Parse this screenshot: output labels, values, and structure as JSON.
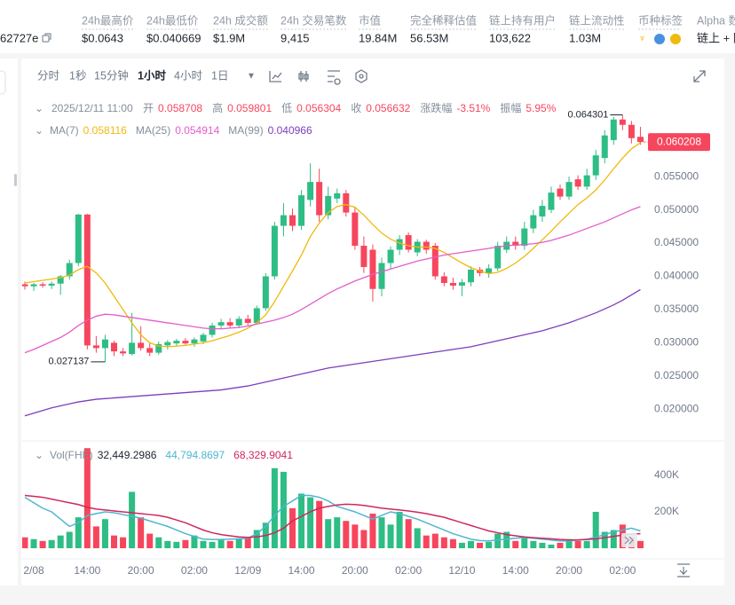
{
  "header": {
    "contract": "62727e",
    "stats": [
      {
        "label": "24h最高价",
        "value": "$0.0643"
      },
      {
        "label": "24h最低价",
        "value": "$0.040669"
      },
      {
        "label": "24h 成交额",
        "value": "$1.9M"
      },
      {
        "label": "24h 交易笔数",
        "value": "9,415"
      },
      {
        "label": "市值",
        "value": "19.84M"
      },
      {
        "label": "完全稀释估值",
        "value": "56.53M"
      },
      {
        "label": "链上持有用户",
        "value": "103,622"
      },
      {
        "label": "链上流动性",
        "value": "1.03M"
      }
    ],
    "tags_label": "币种标签",
    "alpha": {
      "label": "Alpha 数",
      "value": "链上 + 防"
    }
  },
  "toolbar": {
    "intervals": [
      "分时",
      "1秒",
      "15分钟",
      "1小时",
      "4小时",
      "1日"
    ],
    "active": "1小时"
  },
  "info": {
    "time": "2025/12/11 11:00",
    "items": [
      {
        "label": "开",
        "value": 0.058708
      },
      {
        "label": "高",
        "value": 0.059801
      },
      {
        "label": "低",
        "value": 0.056304
      },
      {
        "label": "收",
        "value": 0.056632
      },
      {
        "label": "涨跌幅",
        "value": "-3.51%"
      },
      {
        "label": "振幅",
        "value": "5.95%"
      }
    ]
  },
  "chart_data": {
    "type": "candlestick",
    "up_color": "#2ebd85",
    "down_color": "#f6465d",
    "categories": [
      null,
      "2/08",
      null,
      null,
      null,
      null,
      null,
      "14:00",
      null,
      null,
      null,
      null,
      null,
      "20:00",
      null,
      null,
      null,
      null,
      null,
      "02:00",
      null,
      null,
      null,
      null,
      null,
      "12/09",
      null,
      null,
      null,
      null,
      null,
      "14:00",
      null,
      null,
      null,
      null,
      null,
      "20:00",
      null,
      null,
      null,
      null,
      null,
      "02:00",
      null,
      null,
      null,
      null,
      null,
      "12/10",
      null,
      null,
      null,
      null,
      null,
      "14:00",
      null,
      null,
      null,
      null,
      null,
      "20:00",
      null,
      null,
      null,
      null,
      null,
      "02:00",
      null,
      null
    ],
    "open": [
      0.0388,
      0.0385,
      0.0388,
      0.0386,
      0.0389,
      0.04,
      0.042,
      0.0493,
      0.0296,
      0.0292,
      0.03,
      0.0287,
      0.0283,
      0.03,
      0.0292,
      0.0285,
      0.0296,
      0.0299,
      0.0303,
      0.0299,
      0.0302,
      0.0312,
      0.0326,
      0.0331,
      0.0326,
      0.0336,
      0.033,
      0.0352,
      0.04,
      0.0476,
      0.0492,
      0.0476,
      0.0515,
      0.0542,
      0.0492,
      0.0517,
      0.0525,
      0.0496,
      0.0446,
      0.044,
      0.0381,
      0.042,
      0.044,
      0.0462,
      0.0436,
      0.0452,
      0.0446,
      0.04,
      0.039,
      0.0386,
      0.0391,
      0.041,
      0.0405,
      0.0412,
      0.044,
      0.0452,
      0.0446,
      0.0472,
      0.049,
      0.05,
      0.0532,
      0.052,
      0.0546,
      0.0535,
      0.0552,
      0.0578,
      0.0605,
      0.0636,
      0.0628,
      0.061
    ],
    "high": [
      0.0392,
      0.039,
      0.0391,
      0.0392,
      0.0402,
      0.0425,
      0.0494,
      0.0494,
      0.031,
      0.0312,
      0.0303,
      0.0292,
      0.0345,
      0.0325,
      0.03,
      0.0302,
      0.0304,
      0.0306,
      0.0307,
      0.0308,
      0.0315,
      0.033,
      0.0336,
      0.0337,
      0.034,
      0.0342,
      0.0356,
      0.0405,
      0.0482,
      0.051,
      0.0502,
      0.053,
      0.057,
      0.0562,
      0.0535,
      0.0532,
      0.053,
      0.0505,
      0.046,
      0.0448,
      0.0428,
      0.0445,
      0.0462,
      0.0466,
      0.0456,
      0.0455,
      0.045,
      0.0406,
      0.0398,
      0.0396,
      0.0415,
      0.0414,
      0.0418,
      0.0452,
      0.046,
      0.046,
      0.0482,
      0.05,
      0.0515,
      0.0535,
      0.0538,
      0.055,
      0.0552,
      0.0562,
      0.059,
      0.062,
      0.064,
      0.064301,
      0.0634,
      0.0625
    ],
    "low": [
      0.038,
      0.0378,
      0.0383,
      0.0381,
      0.0372,
      0.0395,
      0.0415,
      0.029,
      0.0285,
      0.027137,
      0.028,
      0.028,
      0.0281,
      0.0288,
      0.028,
      0.0282,
      0.029,
      0.0295,
      0.0297,
      0.0294,
      0.0298,
      0.0308,
      0.032,
      0.0322,
      0.0322,
      0.0326,
      0.0328,
      0.0348,
      0.0395,
      0.046,
      0.0468,
      0.047,
      0.0505,
      0.0482,
      0.0486,
      0.051,
      0.049,
      0.044,
      0.0405,
      0.0362,
      0.037,
      0.041,
      0.0432,
      0.0436,
      0.043,
      0.0434,
      0.0395,
      0.0385,
      0.038,
      0.037,
      0.0385,
      0.04,
      0.0398,
      0.0408,
      0.0435,
      0.044,
      0.044,
      0.0465,
      0.0482,
      0.0495,
      0.0515,
      0.0515,
      0.053,
      0.053,
      0.0545,
      0.057,
      0.0598,
      0.062,
      0.06,
      0.0598
    ],
    "close": [
      0.0385,
      0.0388,
      0.0386,
      0.0389,
      0.04,
      0.042,
      0.0493,
      0.0296,
      0.0292,
      0.0305,
      0.0287,
      0.0284,
      0.03,
      0.0292,
      0.0285,
      0.0298,
      0.0301,
      0.0303,
      0.0299,
      0.0305,
      0.0312,
      0.0326,
      0.0331,
      0.0326,
      0.0336,
      0.033,
      0.0352,
      0.04,
      0.0476,
      0.0492,
      0.0476,
      0.0522,
      0.0542,
      0.0492,
      0.0521,
      0.0525,
      0.0496,
      0.0446,
      0.0414,
      0.0381,
      0.042,
      0.044,
      0.0456,
      0.044,
      0.0452,
      0.044,
      0.04,
      0.039,
      0.0386,
      0.0391,
      0.041,
      0.0405,
      0.0412,
      0.0446,
      0.0452,
      0.0446,
      0.0472,
      0.0492,
      0.0506,
      0.0526,
      0.052,
      0.0542,
      0.0535,
      0.0552,
      0.0582,
      0.0612,
      0.0636,
      0.0628,
      0.0608,
      0.060208
    ],
    "ylim": [
      0.0155,
      0.0669
    ],
    "yticks": [
      {
        "value": 0.02,
        "label": "0.020000"
      },
      {
        "value": 0.025,
        "label": "0.025000"
      },
      {
        "value": 0.03,
        "label": "0.030000"
      },
      {
        "value": 0.035,
        "label": "0.035000"
      },
      {
        "value": 0.04,
        "label": "0.040000"
      },
      {
        "value": 0.045,
        "label": "0.045000"
      },
      {
        "value": 0.05,
        "label": "0.050000"
      },
      {
        "value": 0.055,
        "label": "0.055000"
      }
    ],
    "ma": [
      {
        "name": "MA(7)",
        "value": 0.058116,
        "color": "#f0b90b",
        "values": [
          0.039,
          0.0392,
          0.0394,
          0.0396,
          0.0398,
          0.0402,
          0.041,
          0.0415,
          0.0405,
          0.039,
          0.037,
          0.035,
          0.033,
          0.0312,
          0.03,
          0.0295,
          0.0294,
          0.0295,
          0.0296,
          0.0298,
          0.03,
          0.0303,
          0.0307,
          0.0311,
          0.0316,
          0.0322,
          0.033,
          0.0342,
          0.0362,
          0.0385,
          0.0408,
          0.0432,
          0.046,
          0.048,
          0.0496,
          0.0505,
          0.0508,
          0.0504,
          0.0492,
          0.0478,
          0.0465,
          0.0456,
          0.045,
          0.0446,
          0.0444,
          0.0444,
          0.0442,
          0.0436,
          0.0428,
          0.042,
          0.0413,
          0.0408,
          0.0404,
          0.0406,
          0.0412,
          0.042,
          0.043,
          0.0442,
          0.0455,
          0.0468,
          0.0482,
          0.0495,
          0.0508,
          0.0518,
          0.053,
          0.0545,
          0.0562,
          0.0578,
          0.0592,
          0.0601
        ]
      },
      {
        "name": "MA(25)",
        "value": 0.054914,
        "color": "#e45dcb",
        "values": [
          0.0285,
          0.029,
          0.0296,
          0.0302,
          0.0308,
          0.0316,
          0.0326,
          0.0334,
          0.034,
          0.0343,
          0.0342,
          0.034,
          0.0338,
          0.0336,
          0.0334,
          0.0332,
          0.033,
          0.0328,
          0.0326,
          0.0324,
          0.0322,
          0.0321,
          0.0321,
          0.0322,
          0.0323,
          0.0325,
          0.0328,
          0.0331,
          0.0334,
          0.0338,
          0.0343,
          0.035,
          0.0358,
          0.0366,
          0.0374,
          0.0381,
          0.0387,
          0.0393,
          0.0398,
          0.0403,
          0.0407,
          0.0411,
          0.0415,
          0.0419,
          0.0423,
          0.0426,
          0.0429,
          0.0432,
          0.0434,
          0.0436,
          0.0438,
          0.044,
          0.0442,
          0.0444,
          0.0446,
          0.0447,
          0.0448,
          0.0449,
          0.0451,
          0.0454,
          0.0458,
          0.0462,
          0.0467,
          0.0472,
          0.0477,
          0.0482,
          0.0488,
          0.0494,
          0.05,
          0.0505
        ]
      },
      {
        "name": "MA(99)",
        "value": 0.040966,
        "color": "#7b3fbc",
        "values": [
          0.019,
          0.0194,
          0.0198,
          0.0202,
          0.0205,
          0.0208,
          0.0211,
          0.0213,
          0.0215,
          0.0216,
          0.0217,
          0.0218,
          0.0219,
          0.022,
          0.0221,
          0.0222,
          0.0223,
          0.0224,
          0.0225,
          0.0226,
          0.0227,
          0.0228,
          0.0229,
          0.0231,
          0.0233,
          0.0235,
          0.0238,
          0.0241,
          0.0244,
          0.0247,
          0.025,
          0.0253,
          0.0256,
          0.0259,
          0.0262,
          0.0264,
          0.0266,
          0.0268,
          0.027,
          0.0272,
          0.0274,
          0.0276,
          0.0278,
          0.028,
          0.0282,
          0.0284,
          0.0286,
          0.0288,
          0.029,
          0.0292,
          0.0294,
          0.0297,
          0.03,
          0.0303,
          0.0306,
          0.0309,
          0.0312,
          0.0315,
          0.0318,
          0.0322,
          0.0326,
          0.033,
          0.0335,
          0.034,
          0.0345,
          0.0351,
          0.0357,
          0.0364,
          0.0372,
          0.038
        ]
      }
    ],
    "volume": {
      "name": "Vol(FHE)",
      "value_label": "32,449.2986",
      "values": [
        60000,
        50000,
        40000,
        45000,
        70000,
        90000,
        170000,
        550000,
        120000,
        160000,
        70000,
        60000,
        310000,
        170000,
        80000,
        60000,
        40000,
        35000,
        45000,
        70000,
        40000,
        35000,
        50000,
        40000,
        55000,
        60000,
        100000,
        140000,
        440000,
        420000,
        220000,
        300000,
        280000,
        260000,
        160000,
        170000,
        150000,
        130000,
        100000,
        190000,
        170000,
        130000,
        200000,
        160000,
        110000,
        70000,
        80000,
        60000,
        50000,
        30000,
        40000,
        30000,
        35000,
        80000,
        90000,
        40000,
        60000,
        40000,
        30000,
        20000,
        30000,
        50000,
        40000,
        40000,
        200000,
        90000,
        100000,
        130000,
        60000,
        40000
      ],
      "ylim": [
        0,
        551000
      ],
      "yticks": [
        {
          "value": 200000,
          "label": "200K"
        },
        {
          "value": 400000,
          "label": "400K"
        }
      ],
      "ma": [
        {
          "value_label": "44,794.8697",
          "color": "#4fb6d0",
          "values": [
            280000,
            250000,
            220000,
            200000,
            160000,
            120000,
            140000,
            180000,
            190000,
            200000,
            195000,
            185000,
            175000,
            165000,
            150000,
            135000,
            120000,
            100000,
            80000,
            65000,
            50000,
            48000,
            48000,
            50000,
            52000,
            55000,
            80000,
            120000,
            180000,
            230000,
            260000,
            290000,
            290000,
            280000,
            260000,
            230000,
            215000,
            200000,
            180000,
            160000,
            180000,
            200000,
            190000,
            175000,
            160000,
            140000,
            120000,
            100000,
            80000,
            65000,
            50000,
            42000,
            40000,
            45000,
            50000,
            55000,
            60000,
            55000,
            50000,
            45000,
            40000,
            40000,
            45000,
            50000,
            60000,
            75000,
            90000,
            100000,
            110000,
            95000
          ]
        },
        {
          "value_label": "68,329.9041",
          "color": "#d0275e",
          "values": [
            290000,
            285000,
            280000,
            270000,
            260000,
            250000,
            240000,
            225000,
            215000,
            210000,
            205000,
            200000,
            195000,
            190000,
            185000,
            180000,
            170000,
            155000,
            140000,
            120000,
            100000,
            85000,
            75000,
            68000,
            62000,
            60000,
            62000,
            70000,
            85000,
            110000,
            150000,
            175000,
            200000,
            220000,
            230000,
            238000,
            242000,
            240000,
            235000,
            228000,
            220000,
            215000,
            210000,
            205000,
            198000,
            190000,
            180000,
            170000,
            155000,
            140000,
            125000,
            110000,
            95000,
            85000,
            75000,
            68000,
            62000,
            58000,
            55000,
            52000,
            48000,
            46000,
            46000,
            48000,
            52000,
            58000,
            65000,
            72000,
            78000,
            80000
          ]
        }
      ]
    }
  }
}
